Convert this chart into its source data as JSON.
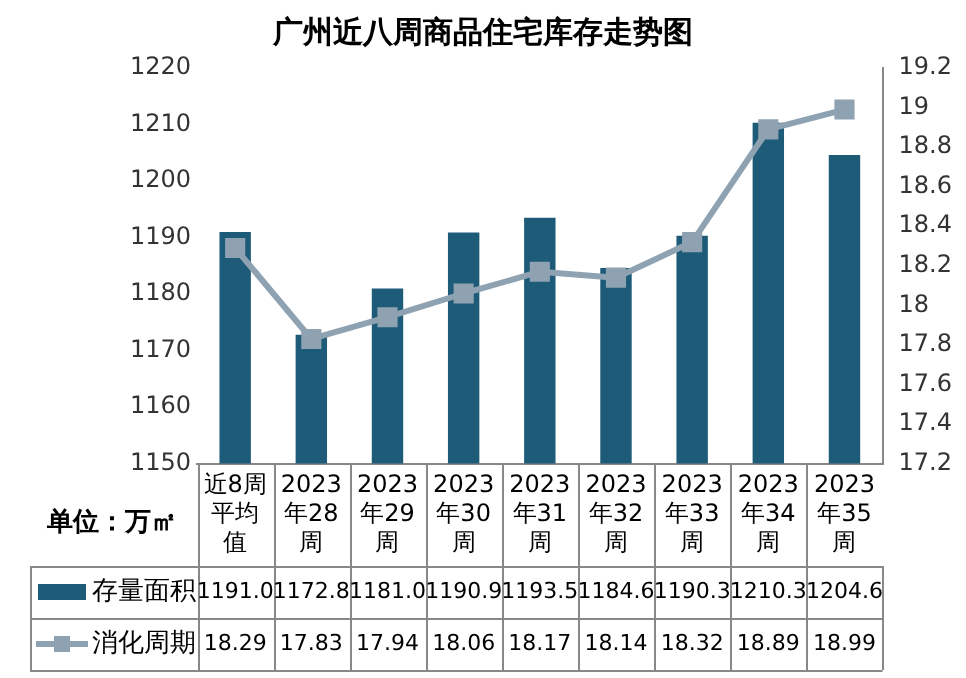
{
  "chart_data": {
    "type": "bar",
    "title": "广州近八周商品住宅库存走势图",
    "categories": [
      "近8周平均值",
      "2023年28周",
      "2023年29周",
      "2023年30周",
      "2023年31周",
      "2023年32周",
      "2023年33周",
      "2023年34周",
      "2023年35周"
    ],
    "series": [
      {
        "name": "存量面积",
        "color": "#1d5b78",
        "values": [
          1191.0,
          1172.8,
          1181.0,
          1190.9,
          1193.5,
          1184.6,
          1190.3,
          1210.3,
          1204.6
        ],
        "value_labels": [
          "1191.0",
          "1172.8",
          "1181.0",
          "1190.9",
          "1193.5",
          "1184.6",
          "1190.3",
          "1210.3",
          "1204.6"
        ]
      },
      {
        "name": "消化周期",
        "type": "line",
        "axis": "y2",
        "color": "#8fa2b2",
        "values": [
          18.29,
          17.83,
          17.94,
          18.06,
          18.17,
          18.14,
          18.32,
          18.89,
          18.99
        ],
        "value_labels": [
          "18.29",
          "17.83",
          "17.94",
          "18.06",
          "18.17",
          "18.14",
          "18.32",
          "18.89",
          "18.99"
        ]
      }
    ],
    "ylim": [
      1150,
      1220
    ],
    "yticks": [
      1150,
      1160,
      1170,
      1180,
      1190,
      1200,
      1210,
      1220
    ],
    "y2lim": [
      17.2,
      19.2
    ],
    "y2ticks": [
      17.2,
      17.4,
      17.6,
      17.8,
      18,
      18.2,
      18.4,
      18.6,
      18.8,
      19,
      19.2
    ],
    "annotations": [
      "单位：万㎡"
    ],
    "legend": "bottom",
    "grid": false,
    "marker": "square",
    "line_style": "solid"
  }
}
